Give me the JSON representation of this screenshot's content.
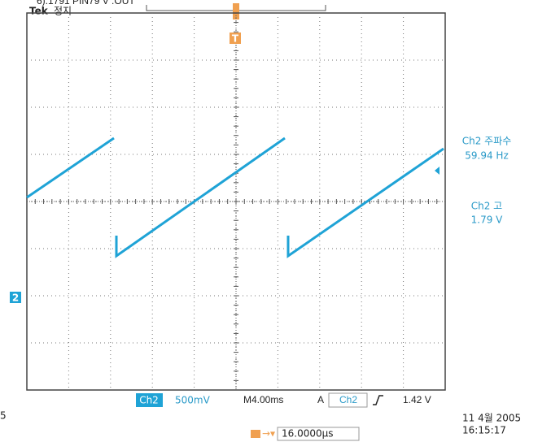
{
  "header": {
    "title": "6).1791 PIN79 V :OUT",
    "brand": "Tek",
    "status": "정지"
  },
  "markers": {
    "trigger": "T",
    "channel": "2"
  },
  "readouts": [
    {
      "label": "Ch2 주파수",
      "value": "59.94 Hz"
    },
    {
      "label": "Ch2 고",
      "value": "1.79 V"
    }
  ],
  "bottom_bar": {
    "channel": "Ch2",
    "scale": "500mV",
    "timebase": "M4.00ms",
    "trigger_mode": "A",
    "trigger_source": "Ch2",
    "trigger_level": "1.42 V"
  },
  "footer": {
    "left": "5",
    "delay": "16.0000µs",
    "date": "11 4월 2005",
    "time": "16:15:17"
  }
}
